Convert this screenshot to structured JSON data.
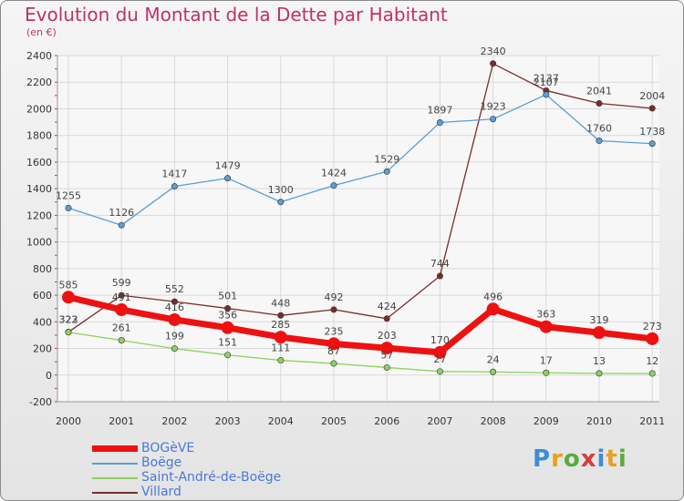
{
  "title": "Evolution du Montant de la Dette par Habitant",
  "subtitle": "(en €)",
  "logo": {
    "letters": [
      {
        "ch": "P",
        "color": "#3c8ed4"
      },
      {
        "ch": "r",
        "color": "#e8a020"
      },
      {
        "ch": "o",
        "color": "#5aac3c"
      },
      {
        "ch": "x",
        "color": "#d83c3c"
      },
      {
        "ch": "i",
        "color": "#3c8ed4"
      },
      {
        "ch": "t",
        "color": "#e8a020"
      },
      {
        "ch": "i",
        "color": "#5aac3c"
      }
    ]
  },
  "chart_data": {
    "type": "line",
    "title": "Evolution du Montant de la Dette par Habitant",
    "subtitle": "(en €)",
    "xlabel": "",
    "ylabel": "",
    "ylim": [
      -200,
      2400
    ],
    "yticks": [
      "-200",
      "0",
      "200",
      "400",
      "600",
      "800",
      "1000",
      "1200",
      "1400",
      "1600",
      "1800",
      "2000",
      "2200",
      "2400"
    ],
    "categories": [
      "2000",
      "2001",
      "2002",
      "2003",
      "2004",
      "2005",
      "2006",
      "2007",
      "2008",
      "2009",
      "2010",
      "2011"
    ],
    "grid": true,
    "legend_position": "bottom-left",
    "series": [
      {
        "name": "Villard",
        "color": "#7a2c2c",
        "values": [
          323,
          599,
          552,
          501,
          448,
          492,
          424,
          744,
          2340,
          2137,
          2041,
          2004
        ]
      },
      {
        "name": "Boëge",
        "color": "#5a9ed6",
        "values": [
          1255,
          1126,
          1417,
          1479,
          1300,
          1424,
          1529,
          1897,
          1923,
          2107,
          1760,
          1738
        ]
      },
      {
        "name": "Saint-André-de-Boëge",
        "color": "#90d060",
        "values": [
          322,
          261,
          199,
          151,
          111,
          87,
          57,
          27,
          24,
          17,
          13,
          12
        ]
      },
      {
        "name": "BOGèVE",
        "color": "#ee1111",
        "values": [
          585,
          491,
          416,
          356,
          285,
          235,
          203,
          170,
          496,
          363,
          319,
          273
        ]
      }
    ],
    "legend_order": [
      "BOGèVE",
      "Boëge",
      "Saint-André-de-Boëge",
      "Villard"
    ]
  }
}
